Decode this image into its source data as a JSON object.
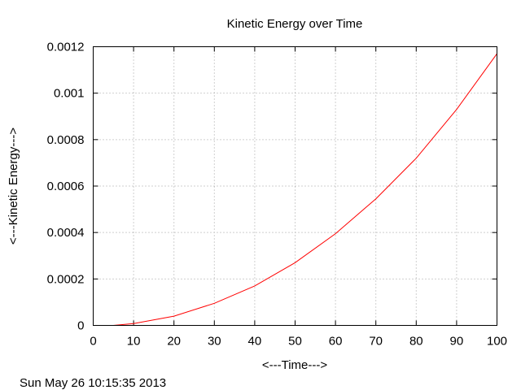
{
  "chart_data": {
    "type": "line",
    "title": "Kinetic Energy over Time",
    "xlabel": "<---Time--->",
    "ylabel": "<---Kinetic Energy--->",
    "xlim": [
      0,
      100
    ],
    "ylim": [
      0,
      0.0012
    ],
    "x_ticks": [
      "0",
      "10",
      "20",
      "30",
      "40",
      "50",
      "60",
      "70",
      "80",
      "90",
      "100"
    ],
    "y_ticks": [
      "0",
      "0.0002",
      "0.0004",
      "0.0006",
      "0.0008",
      "0.001",
      "0.0012"
    ],
    "grid": true,
    "series": [
      {
        "color": "#ff0000",
        "x": [
          5,
          10,
          20,
          30,
          40,
          50,
          60,
          70,
          80,
          90,
          100
        ],
        "y": [
          0,
          8e-06,
          4e-05,
          9.5e-05,
          0.00017,
          0.00027,
          0.000395,
          0.000545,
          0.00072,
          0.00093,
          0.00117
        ]
      }
    ],
    "timestamp": "Sun May 26 10:15:35 2013"
  }
}
